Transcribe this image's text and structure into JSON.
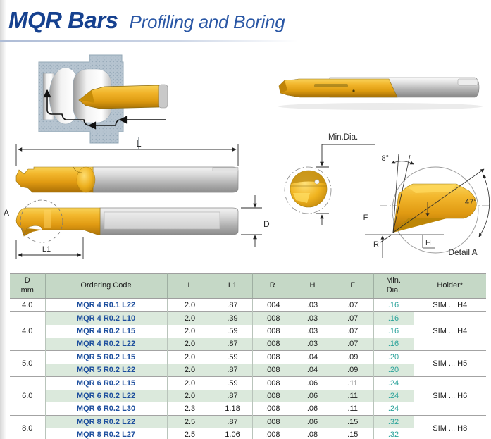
{
  "page": {
    "title": "MQR Bars",
    "subtitle": "Profiling and Boring"
  },
  "colors": {
    "title_blue": "#16418f",
    "subtitle_blue": "#2a57a5",
    "code_blue": "#1c4e9d",
    "min_dia_teal": "#2ba39b",
    "header_green": "#c5d8c6",
    "band_green": "#dbe9dc",
    "gold": "#eda712",
    "steel_gray": "#b9b9b9",
    "workpiece_blue_gray": "#b6c4d0"
  },
  "drawing": {
    "label_L": "L",
    "label_L1": "L1",
    "label_D": "D",
    "label_A": "A",
    "label_min_dia": "Min.Dia.",
    "label_angle_top": "8°",
    "label_angle_side": "47°",
    "label_F": "F",
    "label_R": "R",
    "label_H": "H",
    "label_detail": "Detail A"
  },
  "table": {
    "headers": {
      "d": "D\nmm",
      "code": "Ordering Code",
      "l": "L",
      "l1": "L1",
      "r": "R",
      "h": "H",
      "f": "F",
      "min": "Min.\nDia.",
      "holder": "Holder*"
    },
    "groups": [
      {
        "d": "4.0",
        "holder": "SIM ... H4",
        "rows": [
          {
            "code": "MQR 4 R0.1 L22",
            "l": "2.0",
            "l1": ".87",
            "r": ".004",
            "h": ".03",
            "f": ".07",
            "min": ".16"
          }
        ]
      },
      {
        "d": "4.0",
        "holder": "SIM ... H4",
        "rows": [
          {
            "code": "MQR 4 R0.2 L10",
            "l": "2.0",
            "l1": ".39",
            "r": ".008",
            "h": ".03",
            "f": ".07",
            "min": ".16"
          },
          {
            "code": "MQR 4 R0.2 L15",
            "l": "2.0",
            "l1": ".59",
            "r": ".008",
            "h": ".03",
            "f": ".07",
            "min": ".16"
          },
          {
            "code": "MQR 4 R0.2 L22",
            "l": "2.0",
            "l1": ".87",
            "r": ".008",
            "h": ".03",
            "f": ".07",
            "min": ".16"
          }
        ]
      },
      {
        "d": "5.0",
        "holder": "SIM ... H5",
        "rows": [
          {
            "code": "MQR 5 R0.2 L15",
            "l": "2.0",
            "l1": ".59",
            "r": ".008",
            "h": ".04",
            "f": ".09",
            "min": ".20"
          },
          {
            "code": "MQR 5 R0.2 L22",
            "l": "2.0",
            "l1": ".87",
            "r": ".008",
            "h": ".04",
            "f": ".09",
            "min": ".20"
          }
        ]
      },
      {
        "d": "6.0",
        "holder": "SIM ... H6",
        "rows": [
          {
            "code": "MQR 6 R0.2 L15",
            "l": "2.0",
            "l1": ".59",
            "r": ".008",
            "h": ".06",
            "f": ".11",
            "min": ".24"
          },
          {
            "code": "MQR 6 R0.2 L22",
            "l": "2.0",
            "l1": ".87",
            "r": ".008",
            "h": ".06",
            "f": ".11",
            "min": ".24"
          },
          {
            "code": "MQR 6 R0.2 L30",
            "l": "2.3",
            "l1": "1.18",
            "r": ".008",
            "h": ".06",
            "f": ".11",
            "min": ".24"
          }
        ]
      },
      {
        "d": "8.0",
        "holder": "SIM ... H8",
        "rows": [
          {
            "code": "MQR 8 R0.2 L22",
            "l": "2.5",
            "l1": ".87",
            "r": ".008",
            "h": ".06",
            "f": ".15",
            "min": ".32"
          },
          {
            "code": "MQR 8 R0.2 L27",
            "l": "2.5",
            "l1": "1.06",
            "r": ".008",
            "h": ".08",
            "f": ".15",
            "min": ".32"
          }
        ]
      }
    ]
  }
}
